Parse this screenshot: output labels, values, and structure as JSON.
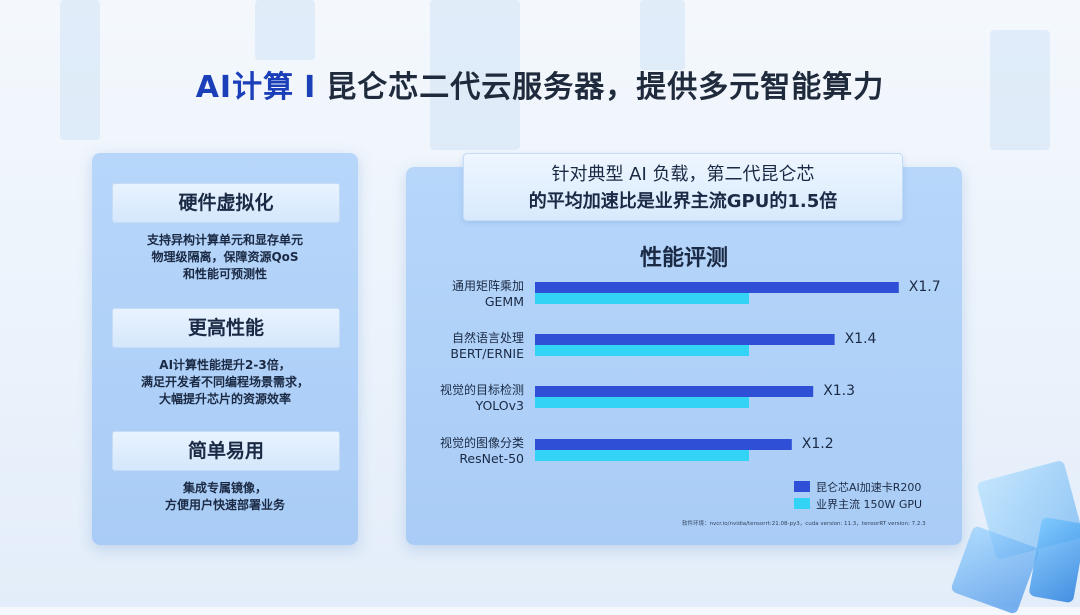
{
  "title": {
    "prefix": "AI计算",
    "separator": "I",
    "main": "昆仑芯二代云服务器，提供多元智能算力"
  },
  "features": [
    {
      "heading": "硬件虚拟化",
      "lines": [
        "支持异构计算单元和显存单元",
        "物理级隔离，保障资源QoS",
        "和性能可预测性"
      ]
    },
    {
      "heading": "更高性能",
      "lines": [
        "AI计算性能提升2-3倍，",
        "满足开发者不同编程场景需求，",
        "大幅提升芯片的资源效率"
      ]
    },
    {
      "heading": "简单易用",
      "lines": [
        "集成专属镜像，",
        "方便用户快速部署业务"
      ]
    }
  ],
  "callout": {
    "line1": "针对典型 AI 负载，第二代昆仑芯",
    "line2": "的平均加速比是业界主流GPU的1.5倍"
  },
  "chart_data": {
    "type": "bar",
    "orientation": "horizontal",
    "title": "性能评测",
    "categories": [
      [
        "通用矩阵乘加",
        "GEMM"
      ],
      [
        "自然语言处理",
        "BERT/ERNIE"
      ],
      [
        "视觉的目标检测",
        "YOLOv3"
      ],
      [
        "视觉的图像分类",
        "ResNet-50"
      ]
    ],
    "series": [
      {
        "name": "昆仑芯AI加速卡R200",
        "values": [
          1.7,
          1.4,
          1.3,
          1.2
        ],
        "color": "#2f4fd6"
      },
      {
        "name": "业界主流 150W GPU",
        "values": [
          1.0,
          1.0,
          1.0,
          1.0
        ],
        "color": "#33d3f5"
      }
    ],
    "data_labels": [
      "X1.7",
      "X1.4",
      "X1.3",
      "X1.2"
    ],
    "legend_position": "bottom-right",
    "grid": false
  },
  "footnote": "软件环境：nvcr.io/nvidia/tensorrt:21.08-py3，cuda version: 11.3，tensorRT version: 7.2.3"
}
